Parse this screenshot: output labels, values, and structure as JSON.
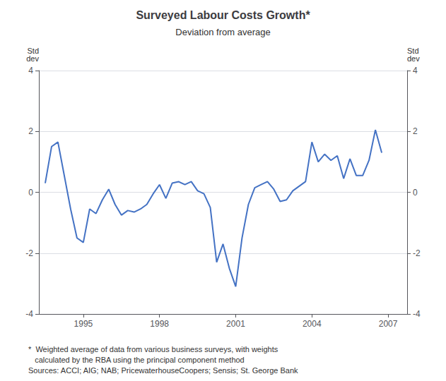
{
  "chart_data": {
    "type": "line",
    "title": "Surveyed Labour Costs Growth*",
    "subtitle": "Deviation from average",
    "ylabel": "Std\ndev",
    "y2label": "Std\ndev",
    "footnotes": [
      "*  Weighted average of data from various business surveys, with weights",
      "   calculated by the RBA using the principal component method",
      "Sources: ACCI; AIG; NAB; PricewaterhouseCoopers; Sensis; St. George Bank"
    ],
    "x": [
      1993.5,
      1993.75,
      1994.0,
      1994.25,
      1994.5,
      1994.75,
      1995.0,
      1995.25,
      1995.5,
      1995.75,
      1996.0,
      1996.25,
      1996.5,
      1996.75,
      1997.0,
      1997.25,
      1997.5,
      1997.75,
      1998.0,
      1998.25,
      1998.5,
      1998.75,
      1999.0,
      1999.25,
      1999.5,
      1999.75,
      2000.0,
      2000.25,
      2000.5,
      2000.75,
      2001.0,
      2001.25,
      2001.5,
      2001.75,
      2002.0,
      2002.25,
      2002.5,
      2002.75,
      2003.0,
      2003.25,
      2003.5,
      2003.75,
      2004.0,
      2004.25,
      2004.5,
      2004.75,
      2005.0,
      2005.25,
      2005.5,
      2005.75,
      2006.0,
      2006.25,
      2006.5,
      2006.75
    ],
    "values": [
      0.3,
      1.5,
      1.65,
      0.55,
      -0.55,
      -1.5,
      -1.65,
      -0.55,
      -0.7,
      -0.25,
      0.1,
      -0.4,
      -0.75,
      -0.6,
      -0.65,
      -0.55,
      -0.4,
      -0.05,
      0.25,
      -0.2,
      0.3,
      0.35,
      0.25,
      0.35,
      0.05,
      -0.05,
      -0.5,
      -2.3,
      -1.7,
      -2.5,
      -3.1,
      -1.5,
      -0.4,
      0.15,
      0.25,
      0.35,
      0.1,
      -0.3,
      -0.25,
      0.05,
      0.2,
      0.35,
      1.65,
      1.0,
      1.25,
      1.05,
      1.2,
      0.45,
      1.1,
      0.55,
      0.55,
      1.05,
      2.05,
      1.3
    ],
    "color": "#4472C4",
    "xlim": [
      1993.25,
      2007.75
    ],
    "xticks": [
      1995,
      1998,
      2001,
      2004,
      2007
    ],
    "ylim": [
      -4,
      4
    ],
    "yticks": [
      -4,
      -2,
      0,
      2,
      4
    ],
    "y2lim": [
      -4,
      4
    ],
    "y2ticks": [
      -4,
      -2,
      0,
      2,
      4
    ],
    "grid": true
  }
}
